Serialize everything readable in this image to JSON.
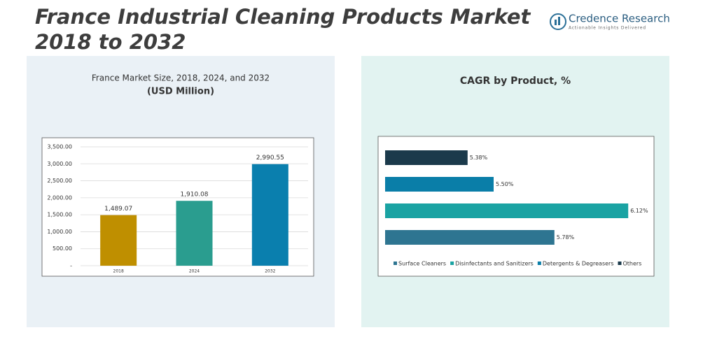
{
  "header": {
    "title": "France Industrial Cleaning Products Market 2018 to 2032",
    "logo": "Credence Research",
    "tagline": "Actionable Insights Delivered"
  },
  "chart_data": [
    {
      "type": "bar",
      "title": "France Market Size, 2018, 2024, and 2032",
      "subtitle": "(USD Million)",
      "categories": [
        "2018",
        "2024",
        "2032"
      ],
      "values": [
        1489.07,
        1910.08,
        2990.55
      ],
      "value_labels": [
        "1,489.07",
        "1,910.08",
        "2,990.55"
      ],
      "colors": [
        "#bf8f00",
        "#2a9d8f",
        "#0a7fae"
      ],
      "ylim": [
        0,
        3500
      ],
      "yticks": [
        {
          "value": 0,
          "label": "-"
        },
        {
          "value": 500,
          "label": "500.00"
        },
        {
          "value": 1000,
          "label": "1,000.00"
        },
        {
          "value": 1500,
          "label": "1,500.00"
        },
        {
          "value": 2000,
          "label": "2,000.00"
        },
        {
          "value": 2500,
          "label": "2,500.00"
        },
        {
          "value": 3000,
          "label": "3,000.00"
        },
        {
          "value": 3500,
          "label": "3,500.00"
        }
      ],
      "grid": true
    },
    {
      "type": "hbar",
      "title": "CAGR by Product, %",
      "categories": [
        "Surface Cleaners",
        "Disinfectants and Sanitizers",
        "Detergents & Degreasers",
        "Others"
      ],
      "values": [
        5.78,
        6.12,
        5.5,
        5.38
      ],
      "value_labels": [
        "5.78%",
        "6.12%",
        "5.50%",
        "5.38%"
      ],
      "colors": [
        "#2e7591",
        "#1aa3a3",
        "#0a7ea8",
        "#1b3a4b"
      ],
      "xlim": [
        5,
        6.2
      ],
      "legend": "bottom"
    }
  ]
}
